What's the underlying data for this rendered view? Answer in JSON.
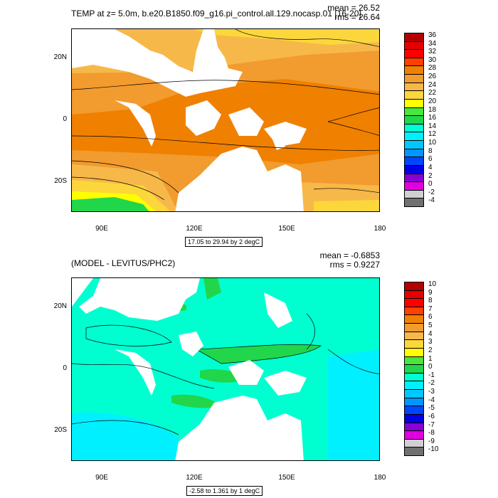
{
  "chart_data": [
    {
      "type": "heatmap",
      "title": "TEMP at z=   5.0m, b.e20.B1850.f09_g16.pi_control.all.129.nocasp.01 [16-20]",
      "mean_label": "mean = 26.52",
      "rms_label": "rms = 26.64",
      "range_label": "17.05 to 29.94 by 2 degC",
      "xticks": [
        "90E",
        "120E",
        "150E",
        "180"
      ],
      "yticks": [
        "20N",
        "0",
        "20S"
      ],
      "xlim": [
        80,
        180
      ],
      "ylim": [
        -30,
        30
      ],
      "colorbar_labels": [
        "36",
        "34",
        "32",
        "30",
        "28",
        "26",
        "24",
        "22",
        "20",
        "18",
        "16",
        "14",
        "12",
        "10",
        "8",
        "6",
        "4",
        "2",
        "0",
        "-2",
        "-4"
      ],
      "colorbar_colors": [
        "#b40000",
        "#e60000",
        "#ff0000",
        "#ff4000",
        "#f08000",
        "#f29b2e",
        "#f7b84a",
        "#fcd73c",
        "#ffff00",
        "#49e63c",
        "#21d64b",
        "#00ffd0",
        "#00f0ff",
        "#00c8ff",
        "#0096ff",
        "#0046ff",
        "#0000e6",
        "#8a00d4",
        "#e000e0",
        "#d0d0d0",
        "#707070"
      ]
    },
    {
      "type": "heatmap",
      "title": "(MODEL - LEVITUS/PHC2)",
      "mean_label": "mean = -0.6853",
      "rms_label": "rms = 0.9227",
      "range_label": "-2.58 to 1.361 by 1 degC",
      "xticks": [
        "90E",
        "120E",
        "150E",
        "180"
      ],
      "yticks": [
        "20N",
        "0",
        "20S"
      ],
      "xlim": [
        80,
        180
      ],
      "ylim": [
        -30,
        30
      ],
      "colorbar_labels": [
        "10",
        "9",
        "8",
        "7",
        "6",
        "5",
        "4",
        "3",
        "2",
        "1",
        "0",
        "-1",
        "-2",
        "-3",
        "-4",
        "-5",
        "-6",
        "-7",
        "-8",
        "-9",
        "-10"
      ],
      "colorbar_colors": [
        "#b40000",
        "#e60000",
        "#ff0000",
        "#ff4000",
        "#f08000",
        "#f29b2e",
        "#f7b84a",
        "#fcd73c",
        "#ffff00",
        "#49e63c",
        "#21d64b",
        "#00ffd0",
        "#00f0ff",
        "#00c8ff",
        "#0096ff",
        "#0046ff",
        "#0000e6",
        "#8a00d4",
        "#e000e0",
        "#d0d0d0",
        "#707070"
      ]
    }
  ]
}
